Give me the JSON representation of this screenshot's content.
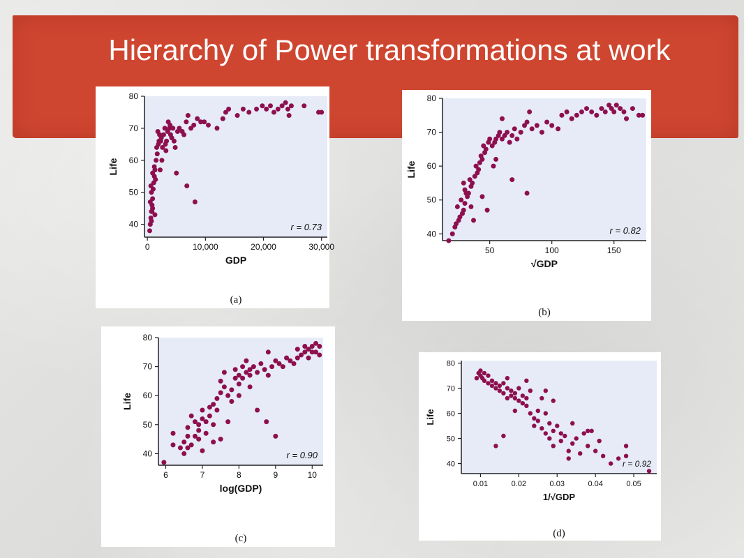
{
  "slide": {
    "title": "Hierarchy of Power transformations at work"
  },
  "colors": {
    "banner": "#cf4630",
    "plot_bg": "#e6ebf7",
    "point": "#8e0f4e"
  },
  "chart_data": [
    {
      "type": "scatter",
      "panel_label": "(a)",
      "xlabel": "GDP",
      "ylabel": "Life",
      "xticks": [
        0,
        10000,
        20000,
        30000
      ],
      "xtick_labels": [
        "0",
        "10,000",
        "20,000",
        "30,000"
      ],
      "yticks": [
        40,
        50,
        60,
        70,
        80
      ],
      "xlim": [
        -500,
        31000
      ],
      "ylim": [
        36,
        80
      ],
      "annotation": "r = 0.73",
      "points": [
        [
          400,
          38
        ],
        [
          500,
          40
        ],
        [
          600,
          42
        ],
        [
          700,
          44
        ],
        [
          800,
          46
        ],
        [
          500,
          47
        ],
        [
          900,
          48
        ],
        [
          700,
          50
        ],
        [
          1000,
          51
        ],
        [
          600,
          52
        ],
        [
          1100,
          53
        ],
        [
          800,
          44
        ],
        [
          1200,
          55
        ],
        [
          900,
          56
        ],
        [
          1300,
          57
        ],
        [
          1500,
          60
        ],
        [
          1400,
          54
        ],
        [
          1700,
          62
        ],
        [
          1600,
          64
        ],
        [
          1900,
          65
        ],
        [
          2000,
          66
        ],
        [
          2100,
          68
        ],
        [
          2300,
          66
        ],
        [
          2400,
          67
        ],
        [
          2600,
          64
        ],
        [
          2800,
          68
        ],
        [
          3000,
          70
        ],
        [
          3100,
          65
        ],
        [
          3300,
          66
        ],
        [
          3500,
          69
        ],
        [
          3600,
          72
        ],
        [
          3800,
          70
        ],
        [
          4000,
          68
        ],
        [
          4200,
          67
        ],
        [
          4400,
          70
        ],
        [
          4600,
          66
        ],
        [
          4800,
          64
        ],
        [
          5200,
          69
        ],
        [
          5500,
          70
        ],
        [
          6000,
          69
        ],
        [
          6300,
          68
        ],
        [
          6700,
          72
        ],
        [
          7000,
          74
        ],
        [
          7500,
          70
        ],
        [
          8000,
          71
        ],
        [
          8600,
          73
        ],
        [
          9200,
          72
        ],
        [
          9800,
          72
        ],
        [
          10500,
          71
        ],
        [
          12000,
          70
        ],
        [
          13000,
          73
        ],
        [
          13500,
          75
        ],
        [
          14000,
          76
        ],
        [
          15500,
          74
        ],
        [
          16500,
          76
        ],
        [
          17500,
          75
        ],
        [
          18800,
          76
        ],
        [
          19800,
          77
        ],
        [
          20500,
          76
        ],
        [
          21200,
          77
        ],
        [
          21800,
          75
        ],
        [
          22500,
          76
        ],
        [
          23200,
          77
        ],
        [
          23800,
          78
        ],
        [
          24200,
          76
        ],
        [
          24800,
          77
        ],
        [
          24400,
          74
        ],
        [
          27000,
          77
        ],
        [
          29500,
          75
        ],
        [
          30000,
          75
        ],
        [
          1200,
          58
        ],
        [
          2500,
          60
        ],
        [
          3200,
          63
        ],
        [
          3900,
          71
        ],
        [
          1800,
          69
        ],
        [
          5000,
          56
        ],
        [
          6800,
          52
        ],
        [
          8200,
          47
        ],
        [
          900,
          45
        ],
        [
          1300,
          43
        ],
        [
          700,
          41
        ],
        [
          2200,
          57
        ]
      ]
    },
    {
      "type": "scatter",
      "panel_label": "(b)",
      "xlabel": "√GDP",
      "ylabel": "Life",
      "xticks": [
        50,
        100,
        150
      ],
      "xtick_labels": [
        "50",
        "100",
        "150"
      ],
      "yticks": [
        40,
        50,
        60,
        70,
        80
      ],
      "xlim": [
        12,
        176
      ],
      "ylim": [
        38,
        80
      ],
      "annotation": "r = 0.82",
      "points": [
        [
          17,
          38
        ],
        [
          20,
          40
        ],
        [
          22,
          42
        ],
        [
          23,
          43
        ],
        [
          25,
          44
        ],
        [
          26,
          45
        ],
        [
          28,
          46
        ],
        [
          29,
          47
        ],
        [
          24,
          48
        ],
        [
          30,
          49
        ],
        [
          27,
          50
        ],
        [
          32,
          51
        ],
        [
          33,
          52
        ],
        [
          30,
          53
        ],
        [
          35,
          54
        ],
        [
          36,
          55
        ],
        [
          34,
          56
        ],
        [
          38,
          57
        ],
        [
          40,
          58
        ],
        [
          41,
          59
        ],
        [
          39,
          60
        ],
        [
          42,
          61
        ],
        [
          44,
          62
        ],
        [
          43,
          63
        ],
        [
          46,
          64
        ],
        [
          47,
          65
        ],
        [
          45,
          66
        ],
        [
          49,
          67
        ],
        [
          50,
          68
        ],
        [
          52,
          66
        ],
        [
          54,
          67
        ],
        [
          55,
          68
        ],
        [
          57,
          69
        ],
        [
          58,
          70
        ],
        [
          60,
          68
        ],
        [
          62,
          69
        ],
        [
          64,
          70
        ],
        [
          66,
          67
        ],
        [
          68,
          69
        ],
        [
          70,
          71
        ],
        [
          72,
          68
        ],
        [
          75,
          70
        ],
        [
          78,
          72
        ],
        [
          80,
          73
        ],
        [
          84,
          71
        ],
        [
          88,
          72
        ],
        [
          92,
          70
        ],
        [
          96,
          73
        ],
        [
          100,
          72
        ],
        [
          105,
          71
        ],
        [
          108,
          75
        ],
        [
          112,
          76
        ],
        [
          116,
          74
        ],
        [
          120,
          75
        ],
        [
          124,
          76
        ],
        [
          128,
          77
        ],
        [
          132,
          76
        ],
        [
          136,
          75
        ],
        [
          140,
          77
        ],
        [
          143,
          76
        ],
        [
          146,
          78
        ],
        [
          148,
          77
        ],
        [
          150,
          76
        ],
        [
          152,
          78
        ],
        [
          155,
          77
        ],
        [
          158,
          76
        ],
        [
          160,
          74
        ],
        [
          165,
          77
        ],
        [
          170,
          75
        ],
        [
          173,
          75
        ],
        [
          60,
          74
        ],
        [
          82,
          76
        ],
        [
          55,
          62
        ],
        [
          68,
          56
        ],
        [
          80,
          52
        ],
        [
          48,
          47
        ],
        [
          37,
          44
        ],
        [
          31,
          52
        ],
        [
          29,
          55
        ],
        [
          35,
          48
        ],
        [
          44,
          51
        ],
        [
          53,
          60
        ]
      ]
    },
    {
      "type": "scatter",
      "panel_label": "(c)",
      "xlabel": "log(GDP)",
      "ylabel": "Life",
      "xticks": [
        6,
        7,
        8,
        9,
        10
      ],
      "xtick_labels": [
        "6",
        "7",
        "8",
        "9",
        "10"
      ],
      "yticks": [
        40,
        50,
        60,
        70,
        80
      ],
      "xlim": [
        5.8,
        10.3
      ],
      "ylim": [
        36,
        80
      ],
      "annotation": "r = 0.90",
      "points": [
        [
          5.95,
          37
        ],
        [
          6.2,
          43
        ],
        [
          6.2,
          47
        ],
        [
          6.4,
          42
        ],
        [
          6.5,
          40
        ],
        [
          6.5,
          44
        ],
        [
          6.6,
          42
        ],
        [
          6.6,
          46
        ],
        [
          6.7,
          43
        ],
        [
          6.8,
          46
        ],
        [
          6.8,
          51
        ],
        [
          6.9,
          48
        ],
        [
          6.9,
          50
        ],
        [
          7.0,
          52
        ],
        [
          7.0,
          55
        ],
        [
          7.1,
          47
        ],
        [
          7.1,
          51
        ],
        [
          7.2,
          53
        ],
        [
          7.2,
          56
        ],
        [
          7.3,
          50
        ],
        [
          7.3,
          44
        ],
        [
          7.4,
          55
        ],
        [
          7.4,
          59
        ],
        [
          7.5,
          61
        ],
        [
          7.5,
          65
        ],
        [
          7.6,
          63
        ],
        [
          7.6,
          68
        ],
        [
          7.7,
          60
        ],
        [
          7.8,
          58
        ],
        [
          7.8,
          62
        ],
        [
          7.9,
          66
        ],
        [
          7.9,
          69
        ],
        [
          8.0,
          64
        ],
        [
          8.0,
          67
        ],
        [
          8.1,
          70
        ],
        [
          8.1,
          66
        ],
        [
          8.2,
          68
        ],
        [
          8.2,
          72
        ],
        [
          8.3,
          67
        ],
        [
          8.3,
          69
        ],
        [
          8.4,
          70
        ],
        [
          8.5,
          68
        ],
        [
          8.6,
          71
        ],
        [
          8.7,
          69
        ],
        [
          8.8,
          75
        ],
        [
          8.8,
          67
        ],
        [
          8.9,
          70
        ],
        [
          9.0,
          72
        ],
        [
          9.1,
          71
        ],
        [
          9.2,
          70
        ],
        [
          9.3,
          73
        ],
        [
          9.4,
          72
        ],
        [
          9.5,
          71
        ],
        [
          9.6,
          73
        ],
        [
          9.6,
          76
        ],
        [
          9.7,
          74
        ],
        [
          9.8,
          75
        ],
        [
          9.8,
          77
        ],
        [
          9.9,
          76
        ],
        [
          9.9,
          73
        ],
        [
          10.0,
          75
        ],
        [
          10.0,
          77
        ],
        [
          10.1,
          78
        ],
        [
          10.1,
          75
        ],
        [
          10.2,
          74
        ],
        [
          10.2,
          77
        ],
        [
          8.5,
          55
        ],
        [
          8.75,
          51
        ],
        [
          9.0,
          46
        ],
        [
          7.7,
          51
        ],
        [
          7.3,
          57
        ],
        [
          6.6,
          49
        ],
        [
          6.9,
          45
        ],
        [
          8.3,
          63
        ],
        [
          7.0,
          41
        ],
        [
          7.5,
          45
        ],
        [
          6.7,
          53
        ],
        [
          8.0,
          60
        ]
      ]
    },
    {
      "type": "scatter",
      "panel_label": "(d)",
      "xlabel": "1/√GDP",
      "ylabel": "Life",
      "xticks": [
        0.01,
        0.02,
        0.03,
        0.04,
        0.05
      ],
      "xtick_labels": [
        "0.01",
        "0.02",
        "0.03",
        "0.04",
        "0.05"
      ],
      "yticks": [
        40,
        50,
        60,
        70,
        80
      ],
      "xlim": [
        0.005,
        0.056
      ],
      "ylim": [
        36,
        81
      ],
      "annotation": "r = 0.92",
      "points": [
        [
          0.009,
          74
        ],
        [
          0.0095,
          76
        ],
        [
          0.01,
          75
        ],
        [
          0.01,
          77
        ],
        [
          0.0105,
          74
        ],
        [
          0.011,
          76
        ],
        [
          0.011,
          73
        ],
        [
          0.012,
          75
        ],
        [
          0.012,
          72
        ],
        [
          0.013,
          73
        ],
        [
          0.013,
          71
        ],
        [
          0.014,
          72
        ],
        [
          0.014,
          70
        ],
        [
          0.015,
          71
        ],
        [
          0.015,
          69
        ],
        [
          0.016,
          72
        ],
        [
          0.016,
          68
        ],
        [
          0.017,
          70
        ],
        [
          0.017,
          66
        ],
        [
          0.018,
          69
        ],
        [
          0.018,
          67
        ],
        [
          0.019,
          68
        ],
        [
          0.019,
          66
        ],
        [
          0.02,
          70
        ],
        [
          0.02,
          65
        ],
        [
          0.021,
          67
        ],
        [
          0.021,
          64
        ],
        [
          0.022,
          66
        ],
        [
          0.022,
          63
        ],
        [
          0.023,
          60
        ],
        [
          0.024,
          58
        ],
        [
          0.024,
          55
        ],
        [
          0.025,
          57
        ],
        [
          0.026,
          54
        ],
        [
          0.026,
          66
        ],
        [
          0.027,
          60
        ],
        [
          0.027,
          52
        ],
        [
          0.028,
          56
        ],
        [
          0.028,
          50
        ],
        [
          0.029,
          53
        ],
        [
          0.029,
          47
        ],
        [
          0.03,
          55
        ],
        [
          0.031,
          52
        ],
        [
          0.031,
          49
        ],
        [
          0.032,
          51
        ],
        [
          0.033,
          45
        ],
        [
          0.034,
          56
        ],
        [
          0.034,
          48
        ],
        [
          0.035,
          50
        ],
        [
          0.036,
          44
        ],
        [
          0.037,
          52
        ],
        [
          0.038,
          47
        ],
        [
          0.039,
          53
        ],
        [
          0.04,
          45
        ],
        [
          0.041,
          49
        ],
        [
          0.042,
          43
        ],
        [
          0.044,
          40
        ],
        [
          0.046,
          42
        ],
        [
          0.048,
          43
        ],
        [
          0.048,
          47
        ],
        [
          0.054,
          37
        ],
        [
          0.014,
          47
        ],
        [
          0.016,
          51
        ],
        [
          0.027,
          69
        ],
        [
          0.029,
          65
        ],
        [
          0.022,
          73
        ],
        [
          0.019,
          61
        ],
        [
          0.025,
          61
        ],
        [
          0.033,
          42
        ],
        [
          0.038,
          53
        ],
        [
          0.017,
          74
        ],
        [
          0.023,
          69
        ]
      ]
    }
  ]
}
